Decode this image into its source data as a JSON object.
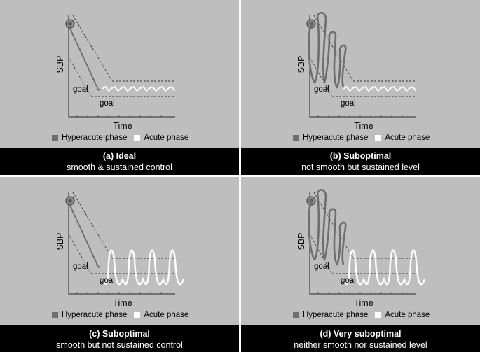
{
  "labels": {
    "y_axis": "SBP",
    "x_axis": "Time",
    "goal": "goal"
  },
  "legend": {
    "hyperacute": "Hyperacute phase",
    "acute": "Acute phase"
  },
  "colors": {
    "panel_bg": "#bebebe",
    "hyperacute_line": "#6e6e6e",
    "acute_line": "#ffffff",
    "caption_bg": "#000000",
    "caption_text": "#ffffff"
  },
  "panels": [
    {
      "title": "(a) Ideal",
      "subtitle": "smooth  & sustained control",
      "hyperacute": "smooth",
      "acute": "sustained"
    },
    {
      "title": "(b) Suboptimal",
      "subtitle": "not smooth but sustained level",
      "hyperacute": "oscillating",
      "acute": "sustained"
    },
    {
      "title": "(c) Suboptimal",
      "subtitle": "smooth but not sustained control",
      "hyperacute": "smooth",
      "acute": "oscillating"
    },
    {
      "title": "(d) Very suboptimal",
      "subtitle": "neither smooth nor sustained level",
      "hyperacute": "oscillating",
      "acute": "oscillating"
    }
  ]
}
